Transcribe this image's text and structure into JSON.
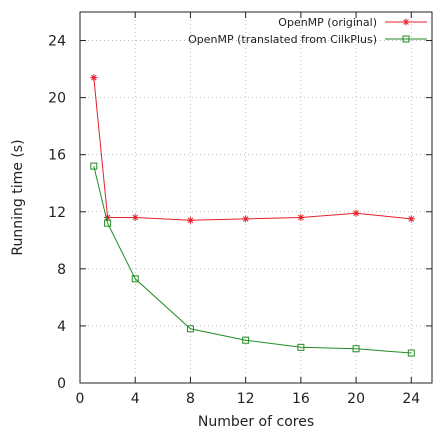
{
  "chart_data": {
    "type": "line",
    "xlabel": "Number of cores",
    "ylabel": "Running time (s)",
    "xlim": [
      0,
      25.5
    ],
    "ylim": [
      0,
      26
    ],
    "xticks": [
      0,
      4,
      8,
      12,
      16,
      20,
      24
    ],
    "yticks": [
      0,
      4,
      8,
      12,
      16,
      20,
      24
    ],
    "grid": true,
    "legend_position": "top-right",
    "series": [
      {
        "name": "OpenMP (original)",
        "color": "#e8202a",
        "marker": "asterisk",
        "x": [
          1,
          2,
          4,
          8,
          12,
          16,
          20,
          24
        ],
        "y": [
          21.4,
          11.6,
          11.6,
          11.4,
          11.5,
          11.6,
          11.9,
          11.5
        ]
      },
      {
        "name": "OpenMP (translated from CilkPlus)",
        "color": "#228b22",
        "marker": "square",
        "x": [
          1,
          2,
          4,
          8,
          12,
          16,
          20,
          24
        ],
        "y": [
          15.2,
          11.2,
          7.3,
          3.8,
          3.0,
          2.5,
          2.4,
          2.1
        ]
      }
    ]
  }
}
